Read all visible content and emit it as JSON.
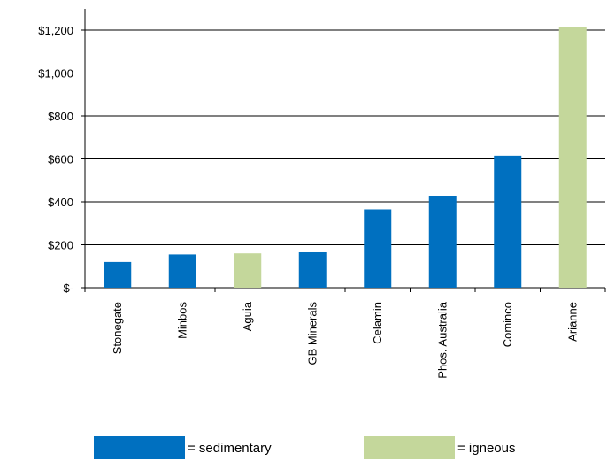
{
  "chart_data": {
    "type": "bar",
    "categories": [
      "Stonegate",
      "Minbos",
      "Aguia",
      "GB Minerals",
      "Celamin",
      "Phos. Australia",
      "Cominco",
      "Arianne"
    ],
    "values": [
      120,
      155,
      160,
      165,
      365,
      425,
      615,
      1215
    ],
    "bar_groups": [
      "sedimentary",
      "sedimentary",
      "igneous",
      "sedimentary",
      "sedimentary",
      "sedimentary",
      "sedimentary",
      "igneous"
    ],
    "title": "",
    "xlabel": "",
    "ylabel": "",
    "ylim": [
      0,
      1200
    ],
    "yticks": [
      0,
      200,
      400,
      600,
      800,
      1000,
      1200
    ],
    "ytick_labels": [
      "$-",
      "$200",
      "$400",
      "$600",
      "$800",
      "$1,000",
      "$1,200"
    ],
    "grid": "horizontal",
    "legend": {
      "placement": "bottom",
      "items": [
        {
          "key": "sedimentary",
          "label": "= sedimentary",
          "color": "#0070C0"
        },
        {
          "key": "igneous",
          "label": "= igneous",
          "color": "#C4D79B"
        }
      ]
    }
  }
}
